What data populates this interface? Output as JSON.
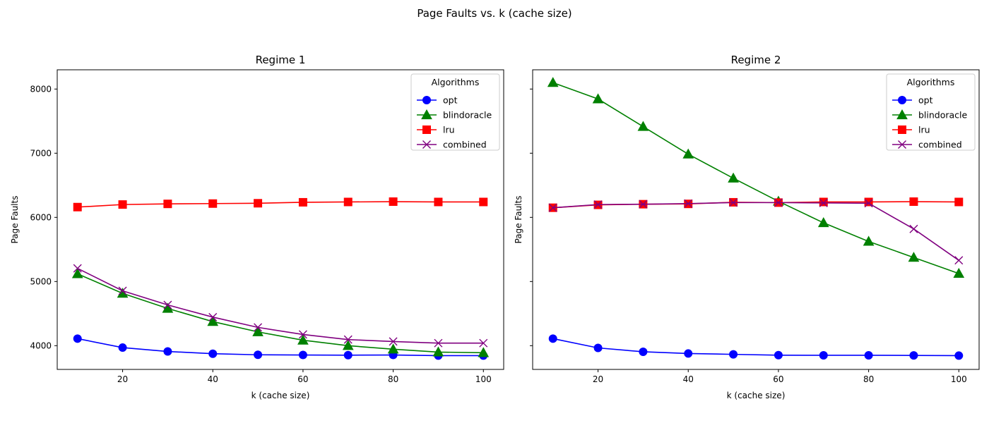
{
  "figure": {
    "suptitle": "Page Faults vs. k (cache size)"
  },
  "chart_data": [
    {
      "type": "line",
      "title": "Regime 1",
      "xlabel": "k (cache size)",
      "ylabel": "Page Faults",
      "x": [
        10,
        20,
        30,
        40,
        50,
        60,
        70,
        80,
        90,
        100
      ],
      "xticks": [
        20,
        40,
        60,
        80,
        100
      ],
      "yticks": [
        4000,
        5000,
        6000,
        7000,
        8000
      ],
      "xlim": [
        5.5,
        104.5
      ],
      "ylim": [
        3630,
        8300
      ],
      "grid": false,
      "legend": {
        "title": "Algorithms",
        "placement": "top-right"
      },
      "series": [
        {
          "name": "opt",
          "color": "#0000ff",
          "marker": "circle",
          "values": [
            4110,
            3970,
            3910,
            3875,
            3858,
            3855,
            3852,
            3855,
            3845,
            3845
          ]
        },
        {
          "name": "blindoracle",
          "color": "#008000",
          "marker": "triangle",
          "values": [
            5120,
            4815,
            4580,
            4375,
            4215,
            4085,
            4000,
            3945,
            3900,
            3890
          ]
        },
        {
          "name": "lru",
          "color": "#ff0000",
          "marker": "square",
          "values": [
            6160,
            6200,
            6210,
            6215,
            6220,
            6235,
            6240,
            6245,
            6240,
            6240
          ]
        },
        {
          "name": "combined",
          "color": "#800080",
          "marker": "x",
          "values": [
            5205,
            4855,
            4635,
            4445,
            4285,
            4175,
            4095,
            4065,
            4040,
            4040
          ]
        }
      ]
    },
    {
      "type": "line",
      "title": "Regime 2",
      "xlabel": "k (cache size)",
      "ylabel": "Page Faults",
      "x": [
        10,
        20,
        30,
        40,
        50,
        60,
        70,
        80,
        90,
        100
      ],
      "xticks": [
        20,
        40,
        60,
        80,
        100
      ],
      "yticks": [
        4000,
        5000,
        6000,
        7000,
        8000
      ],
      "xlim": [
        5.5,
        104.5
      ],
      "ylim": [
        3630,
        8300
      ],
      "grid": false,
      "legend": {
        "title": "Algorithms",
        "placement": "top-right"
      },
      "series": [
        {
          "name": "opt",
          "color": "#0000ff",
          "marker": "circle",
          "values": [
            4110,
            3965,
            3905,
            3878,
            3865,
            3852,
            3850,
            3850,
            3848,
            3845
          ]
        },
        {
          "name": "blindoracle",
          "color": "#008000",
          "marker": "triangle",
          "values": [
            8100,
            7845,
            7415,
            6985,
            6610,
            6250,
            5915,
            5625,
            5375,
            5125
          ]
        },
        {
          "name": "lru",
          "color": "#ff0000",
          "marker": "square",
          "values": [
            6150,
            6195,
            6205,
            6210,
            6235,
            6230,
            6240,
            6240,
            6245,
            6240
          ]
        },
        {
          "name": "combined",
          "color": "#800080",
          "marker": "x",
          "values": [
            6150,
            6200,
            6205,
            6215,
            6230,
            6230,
            6225,
            6220,
            5820,
            5330
          ]
        }
      ]
    }
  ]
}
